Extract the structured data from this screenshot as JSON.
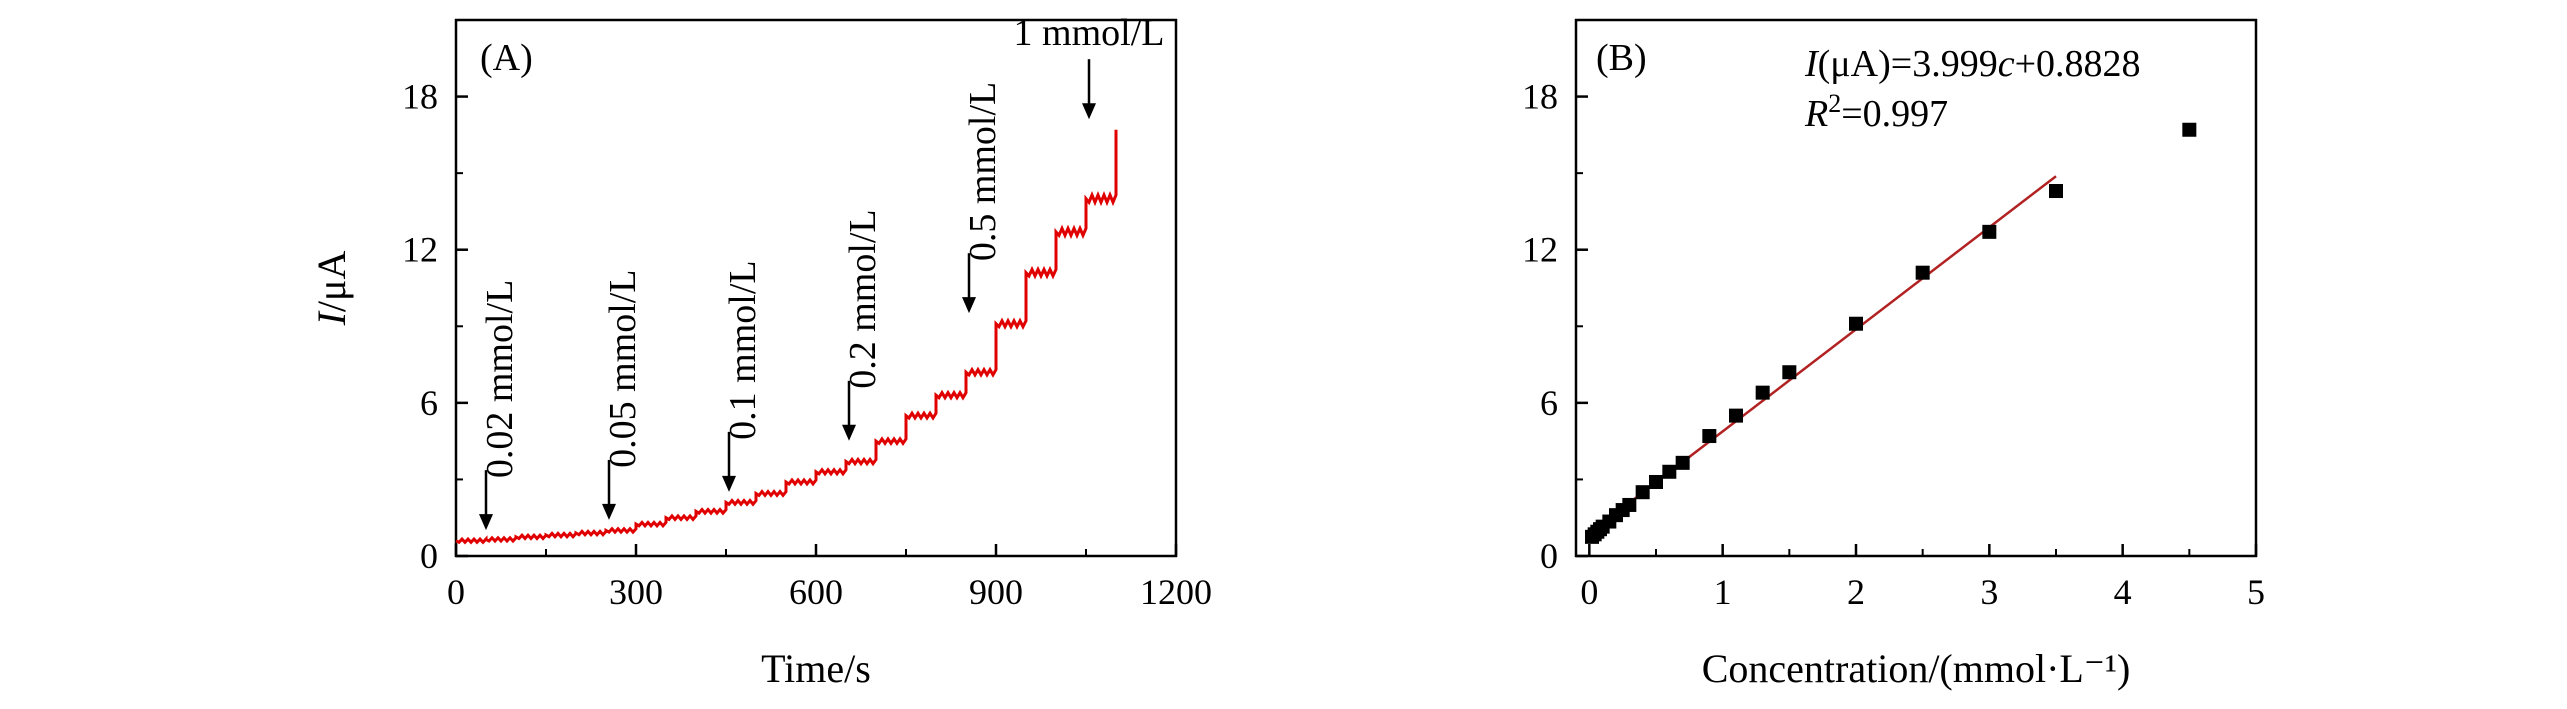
{
  "chart_data": [
    {
      "panel": "A",
      "type": "line",
      "panel_label": "(A)",
      "xlabel": "Time/s",
      "ylabel_italic": "I",
      "ylabel_rest": "/μA",
      "xlim": [
        0,
        1200
      ],
      "ylim": [
        0,
        21
      ],
      "xticks": [
        0,
        300,
        600,
        900,
        1200
      ],
      "yticks": [
        0,
        6,
        12,
        18
      ],
      "line_color": "#e00000",
      "series": [
        {
          "x": [
            0,
            50,
            100,
            150,
            200,
            250,
            300,
            350,
            400,
            450,
            500,
            550,
            600,
            650,
            700,
            750,
            800,
            850,
            900,
            950,
            1000,
            1050,
            1100
          ],
          "values": [
            0.6,
            0.65,
            0.75,
            0.82,
            0.9,
            1.0,
            1.25,
            1.5,
            1.75,
            2.1,
            2.45,
            2.9,
            3.3,
            3.7,
            4.5,
            5.5,
            6.3,
            7.2,
            9.1,
            11.1,
            12.7,
            14.0,
            16.7
          ]
        }
      ],
      "annotations": [
        {
          "text": "0.02 mmol/L",
          "x": 50,
          "y": 0.7
        },
        {
          "text": "0.05 mmol/L",
          "x": 255,
          "y": 1.1
        },
        {
          "text": "0.1 mmol/L",
          "x": 455,
          "y": 2.2
        },
        {
          "text": "0.2 mmol/L",
          "x": 655,
          "y": 4.2
        },
        {
          "text": "0.5 mmol/L",
          "x": 855,
          "y": 9.2
        },
        {
          "text": "1 mmol/L",
          "x": 1055,
          "y": 16.8
        }
      ]
    },
    {
      "panel": "B",
      "type": "scatter",
      "panel_label": "(B)",
      "xlabel": "Concentration/(mmol·L⁻¹)",
      "xlim": [
        -0.1,
        5
      ],
      "ylim": [
        0,
        21
      ],
      "xticks": [
        0,
        1,
        2,
        3,
        4,
        5
      ],
      "yticks": [
        0,
        6,
        12,
        18
      ],
      "equation": "I(μA)=3.999c+0.8828",
      "equation_parts": {
        "italic_I": "I",
        "mid": "(μA)=3.999",
        "italic_c": "c",
        "tail": "+0.8828"
      },
      "r2_parts": {
        "italic_R": "R",
        "sup": "2",
        "tail": "=0.997"
      },
      "fit": {
        "slope": 3.999,
        "intercept": 0.8828,
        "x_range": [
          0,
          3.5
        ],
        "color": "#b22222"
      },
      "points": {
        "x": [
          0.02,
          0.04,
          0.06,
          0.08,
          0.1,
          0.15,
          0.2,
          0.25,
          0.3,
          0.4,
          0.5,
          0.6,
          0.7,
          0.9,
          1.1,
          1.3,
          1.5,
          2.0,
          2.5,
          3.0,
          3.5,
          4.5
        ],
        "y": [
          0.75,
          0.85,
          0.95,
          1.05,
          1.15,
          1.35,
          1.6,
          1.8,
          2.0,
          2.5,
          2.9,
          3.3,
          3.65,
          4.7,
          5.5,
          6.4,
          7.2,
          9.1,
          11.1,
          12.7,
          14.3,
          16.7
        ]
      }
    }
  ]
}
